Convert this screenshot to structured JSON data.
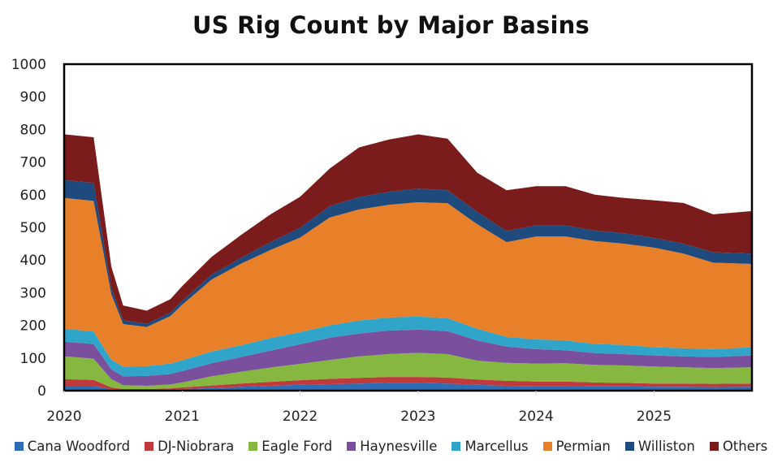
{
  "chart_data": {
    "type": "area",
    "stacked": true,
    "title": "US Rig Count by Major Basins",
    "xlabel": "",
    "ylabel": "",
    "ylim": [
      0,
      1000
    ],
    "xlim": [
      2020.0,
      2025.83
    ],
    "yticks": [
      "0",
      "100",
      "200",
      "300",
      "400",
      "500",
      "600",
      "700",
      "800",
      "900",
      "1000"
    ],
    "xticks": [
      {
        "value": 2020,
        "label": "2020"
      },
      {
        "value": 2021,
        "label": "2021"
      },
      {
        "value": 2022,
        "label": "2022"
      },
      {
        "value": 2023,
        "label": "2023"
      },
      {
        "value": 2024,
        "label": "2024"
      },
      {
        "value": 2025,
        "label": "2025"
      }
    ],
    "grid": false,
    "legend_position": "bottom",
    "x": [
      2020.0,
      2020.25,
      2020.4,
      2020.5,
      2020.7,
      2020.9,
      2021.0,
      2021.25,
      2021.5,
      2021.75,
      2022.0,
      2022.25,
      2022.5,
      2022.75,
      2023.0,
      2023.25,
      2023.5,
      2023.75,
      2024.0,
      2024.25,
      2024.5,
      2024.75,
      2025.0,
      2025.25,
      2025.5,
      2025.83
    ],
    "series": [
      {
        "name": "Cana Woodford",
        "color": "#2e6db4",
        "values": [
          15,
          15,
          4,
          2,
          2,
          3,
          5,
          8,
          12,
          15,
          18,
          20,
          22,
          24,
          24,
          22,
          18,
          15,
          14,
          14,
          13,
          13,
          12,
          12,
          11,
          12
        ]
      },
      {
        "name": "DJ-Niobrara",
        "color": "#c0393b",
        "values": [
          20,
          18,
          6,
          3,
          3,
          4,
          5,
          8,
          10,
          12,
          14,
          16,
          17,
          18,
          18,
          18,
          16,
          15,
          14,
          14,
          12,
          11,
          10,
          10,
          10,
          10
        ]
      },
      {
        "name": "Eagle Ford",
        "color": "#86b740",
        "values": [
          70,
          65,
          25,
          12,
          10,
          12,
          15,
          28,
          36,
          44,
          50,
          58,
          66,
          70,
          74,
          72,
          58,
          55,
          55,
          56,
          54,
          53,
          52,
          50,
          48,
          50
        ]
      },
      {
        "name": "Haynesville",
        "color": "#7a4f9e",
        "values": [
          45,
          45,
          30,
          27,
          30,
          32,
          35,
          40,
          45,
          52,
          60,
          68,
          70,
          72,
          71,
          70,
          62,
          50,
          44,
          40,
          36,
          35,
          34,
          33,
          34,
          36
        ]
      },
      {
        "name": "Marcellus",
        "color": "#31a5c9",
        "values": [
          40,
          38,
          30,
          30,
          30,
          32,
          33,
          36,
          36,
          38,
          37,
          38,
          40,
          40,
          40,
          40,
          36,
          30,
          30,
          30,
          28,
          28,
          25,
          25,
          24,
          25
        ]
      },
      {
        "name": "Permian",
        "color": "#e8802a",
        "values": [
          400,
          400,
          200,
          130,
          120,
          145,
          170,
          220,
          250,
          270,
          290,
          330,
          340,
          345,
          350,
          352,
          320,
          290,
          315,
          318,
          315,
          310,
          305,
          290,
          265,
          255
        ]
      },
      {
        "name": "Williston",
        "color": "#1f4a7e",
        "values": [
          55,
          55,
          20,
          12,
          10,
          11,
          12,
          15,
          18,
          24,
          30,
          35,
          38,
          40,
          42,
          40,
          38,
          34,
          34,
          34,
          32,
          32,
          30,
          30,
          32,
          32
        ]
      },
      {
        "name": "Others",
        "color": "#7a1c1c",
        "values": [
          140,
          140,
          65,
          45,
          40,
          41,
          45,
          55,
          70,
          85,
          95,
          115,
          152,
          160,
          166,
          158,
          120,
          125,
          120,
          120,
          110,
          108,
          115,
          125,
          116,
          130
        ]
      }
    ]
  }
}
